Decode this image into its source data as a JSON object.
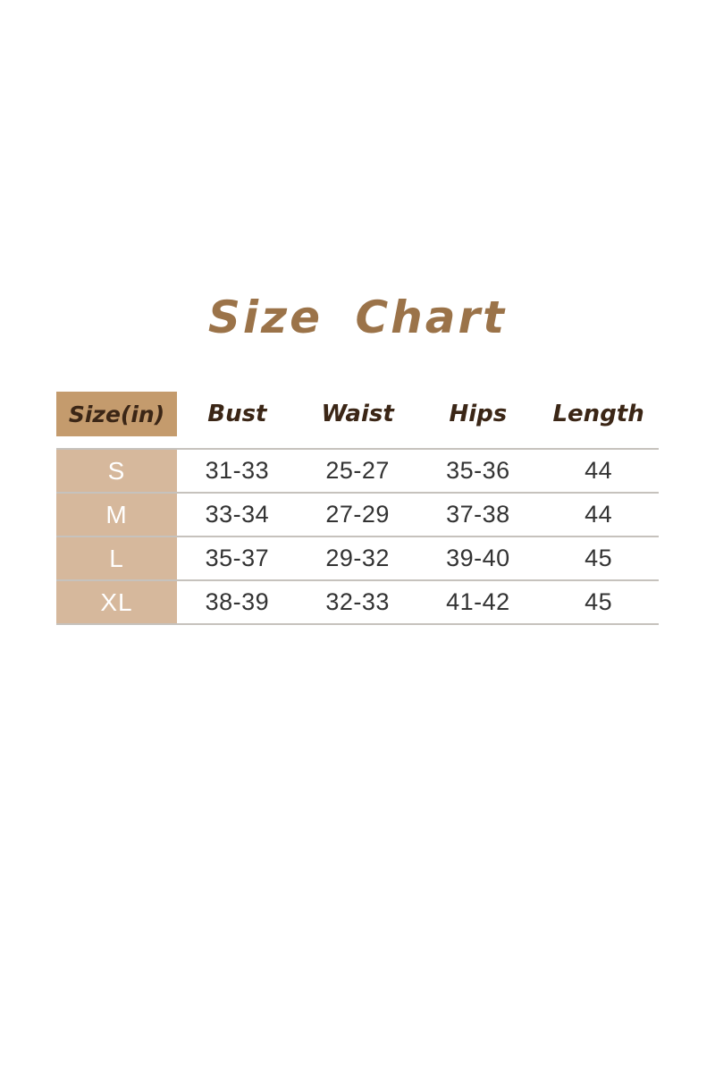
{
  "title": {
    "text": "Size Chart"
  },
  "colors": {
    "title-color": "#9B7349",
    "header-bg": "#C49B6D",
    "header-text": "#3B2616",
    "row-label-bg": "#D6B89C",
    "divider": "#C6C2BD",
    "data-text": "#333333",
    "page-bg": "#ffffff"
  },
  "table": {
    "columns": [
      "Size(in)",
      "Bust",
      "Waist",
      "Hips",
      "Length"
    ],
    "rows": [
      {
        "size": "S",
        "bust": "31-33",
        "waist": "25-27",
        "hips": "35-36",
        "length": "44"
      },
      {
        "size": "M",
        "bust": "33-34",
        "waist": "27-29",
        "hips": "37-38",
        "length": "44"
      },
      {
        "size": "L",
        "bust": "35-37",
        "waist": "29-32",
        "hips": "39-40",
        "length": "45"
      },
      {
        "size": "XL",
        "bust": "38-39",
        "waist": "32-33",
        "hips": "41-42",
        "length": "45"
      }
    ]
  },
  "chart_data": {
    "type": "table",
    "title": "Size Chart",
    "units": "inches",
    "columns": [
      "Size(in)",
      "Bust",
      "Waist",
      "Hips",
      "Length"
    ],
    "rows": [
      [
        "S",
        "31-33",
        "25-27",
        "35-36",
        "44"
      ],
      [
        "M",
        "33-34",
        "27-29",
        "37-38",
        "44"
      ],
      [
        "L",
        "35-37",
        "29-32",
        "39-40",
        "45"
      ],
      [
        "XL",
        "38-39",
        "32-33",
        "41-42",
        "45"
      ]
    ]
  }
}
